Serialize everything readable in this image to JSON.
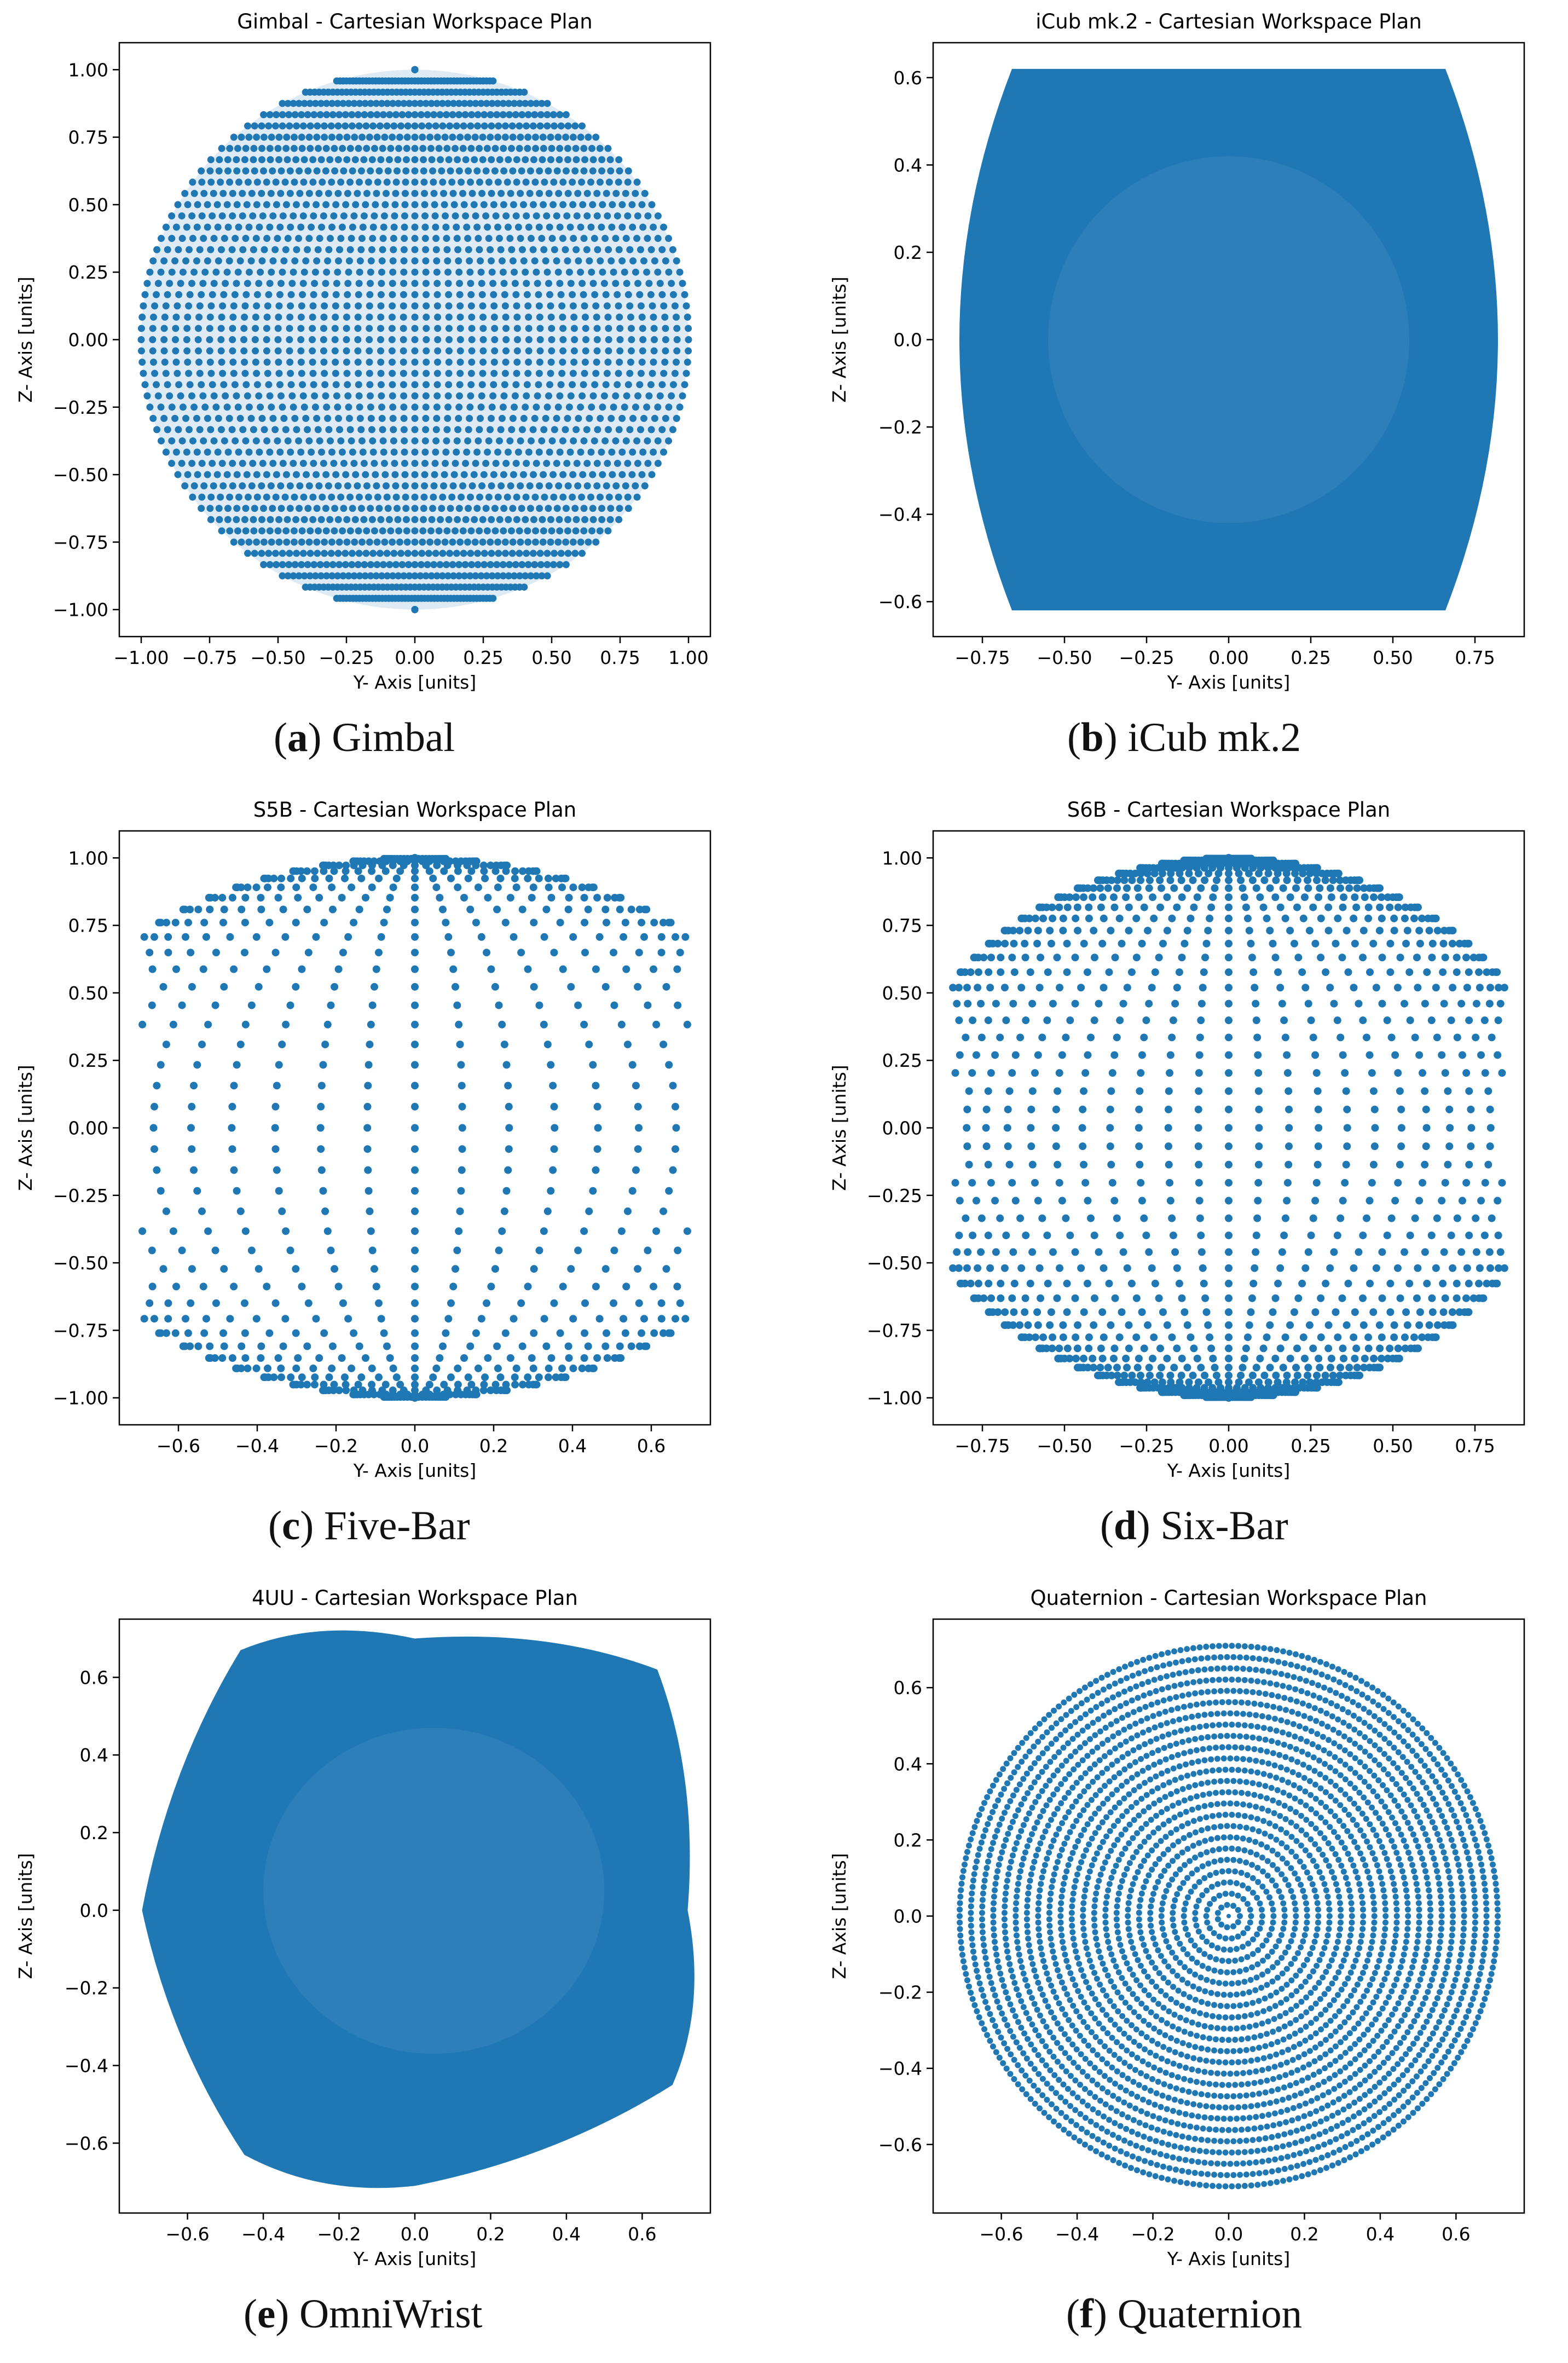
{
  "figure": {
    "point_color": "#1f77b4",
    "captions": [
      {
        "letter": "a",
        "text": "Gimbal",
        "open": "(",
        "close": ")"
      },
      {
        "letter": "b",
        "text": "iCub mk.2",
        "open": "(",
        "close": ")"
      },
      {
        "letter": "c",
        "text": "Five-Bar",
        "open": "(",
        "close": ")"
      },
      {
        "letter": "d",
        "text": "Six-Bar",
        "open": "(",
        "close": ")"
      },
      {
        "letter": "e",
        "text": "OmniWrist",
        "open": "(",
        "close": ")"
      },
      {
        "letter": "f",
        "text": "Quaternion",
        "open": "(",
        "close": ")"
      }
    ]
  },
  "chart_data": [
    {
      "id": "gimbal",
      "type": "scatter",
      "title": "Gimbal - Cartesian Workspace Plan",
      "xlabel": "Y- Axis [units]",
      "ylabel": "Z- Axis [units]",
      "xlim": [
        -1.08,
        1.08
      ],
      "ylim": [
        -1.1,
        1.1
      ],
      "xticks": [
        -1.0,
        -0.75,
        -0.5,
        -0.25,
        0.0,
        0.25,
        0.5,
        0.75,
        1.0
      ],
      "xtick_labels": [
        "−1.00",
        "−0.75",
        "−0.50",
        "−0.25",
        "0.00",
        "0.25",
        "0.50",
        "0.75",
        "1.00"
      ],
      "yticks": [
        -1.0,
        -0.75,
        -0.5,
        -0.25,
        0.0,
        0.25,
        0.5,
        0.75,
        1.0
      ],
      "ytick_labels": [
        "−1.00",
        "−0.75",
        "−0.50",
        "−0.25",
        "0.00",
        "0.25",
        "0.50",
        "0.75",
        "1.00"
      ],
      "grid": false,
      "series": [
        {
          "name": "workspace",
          "shape": "unit disk",
          "points": "disk of radius 1.0 sampled on a dense latitude/longitude grid"
        }
      ]
    },
    {
      "id": "icub",
      "type": "scatter",
      "title": "iCub mk.2 - Cartesian Workspace Plan",
      "xlabel": "Y- Axis [units]",
      "ylabel": "Z- Axis [units]",
      "xlim": [
        -0.9,
        0.9
      ],
      "ylim": [
        -0.68,
        0.68
      ],
      "xticks": [
        -0.75,
        -0.5,
        -0.25,
        0.0,
        0.25,
        0.5,
        0.75
      ],
      "xtick_labels": [
        "−0.75",
        "−0.50",
        "−0.25",
        "0.00",
        "0.25",
        "0.50",
        "0.75"
      ],
      "yticks": [
        -0.6,
        -0.4,
        -0.2,
        0.0,
        0.2,
        0.4,
        0.6
      ],
      "ytick_labels": [
        "−0.6",
        "−0.4",
        "−0.2",
        "0.0",
        "0.2",
        "0.4",
        "0.6"
      ],
      "grid": false,
      "series": [
        {
          "name": "workspace",
          "shape": "barrel",
          "z_range": [
            -0.62,
            0.62
          ],
          "y_half_width_edge": 0.66,
          "y_half_width_mid": 0.82
        }
      ]
    },
    {
      "id": "s5b",
      "type": "scatter",
      "title": "S5B - Cartesian Workspace Plan",
      "xlabel": "Y- Axis [units]",
      "ylabel": "Z- Axis [units]",
      "xlim": [
        -0.75,
        0.75
      ],
      "ylim": [
        -1.1,
        1.1
      ],
      "xticks": [
        -0.6,
        -0.4,
        -0.2,
        0.0,
        0.2,
        0.4,
        0.6
      ],
      "xtick_labels": [
        "−0.6",
        "−0.4",
        "−0.2",
        "0.0",
        "0.2",
        "0.4",
        "0.6"
      ],
      "yticks": [
        -1.0,
        -0.75,
        -0.5,
        -0.25,
        0.0,
        0.25,
        0.5,
        0.75,
        1.0
      ],
      "ytick_labels": [
        "−1.00",
        "−0.75",
        "−0.50",
        "−0.25",
        "0.00",
        "0.25",
        "0.50",
        "0.75",
        "1.00"
      ],
      "grid": false,
      "series": [
        {
          "name": "workspace",
          "shape": "sphere cut at |y| <= 0.70",
          "y_range": [
            -0.7,
            0.7
          ],
          "z_range": [
            -1.0,
            1.0
          ]
        }
      ]
    },
    {
      "id": "s6b",
      "type": "scatter",
      "title": "S6B - Cartesian Workspace Plan",
      "xlabel": "Y- Axis [units]",
      "ylabel": "Z- Axis [units]",
      "xlim": [
        -0.9,
        0.9
      ],
      "ylim": [
        -1.1,
        1.1
      ],
      "xticks": [
        -0.75,
        -0.5,
        -0.25,
        0.0,
        0.25,
        0.5,
        0.75
      ],
      "xtick_labels": [
        "−0.75",
        "−0.50",
        "−0.25",
        "0.00",
        "0.25",
        "0.50",
        "0.75"
      ],
      "yticks": [
        -1.0,
        -0.75,
        -0.5,
        -0.25,
        0.0,
        0.25,
        0.5,
        0.75,
        1.0
      ],
      "ytick_labels": [
        "−1.00",
        "−0.75",
        "−0.50",
        "−0.25",
        "0.00",
        "0.25",
        "0.50",
        "0.75",
        "1.00"
      ],
      "grid": false,
      "series": [
        {
          "name": "workspace",
          "shape": "sphere cut at |y| <= 0.84",
          "y_range": [
            -0.84,
            0.84
          ],
          "z_range": [
            -1.0,
            1.0
          ]
        }
      ]
    },
    {
      "id": "4uu",
      "type": "scatter",
      "title": "4UU - Cartesian Workspace Plan",
      "xlabel": "Y- Axis [units]",
      "ylabel": "Z- Axis [units]",
      "xlim": [
        -0.78,
        0.78
      ],
      "ylim": [
        -0.78,
        0.75
      ],
      "xticks": [
        -0.6,
        -0.4,
        -0.2,
        0.0,
        0.2,
        0.4,
        0.6
      ],
      "xtick_labels": [
        "−0.6",
        "−0.4",
        "−0.2",
        "0.0",
        "0.2",
        "0.4",
        "0.6"
      ],
      "yticks": [
        -0.6,
        -0.4,
        -0.2,
        0.0,
        0.2,
        0.4,
        0.6
      ],
      "ytick_labels": [
        "−0.6",
        "−0.4",
        "−0.2",
        "0.0",
        "0.2",
        "0.4",
        "0.6"
      ],
      "grid": false,
      "series": [
        {
          "name": "workspace",
          "shape": "skewed rounded square",
          "outline": [
            [
              -0.46,
              0.67
            ],
            [
              0.0,
              0.7
            ],
            [
              0.64,
              0.62
            ],
            [
              0.72,
              0.0
            ],
            [
              0.68,
              -0.45
            ],
            [
              0.0,
              -0.71
            ],
            [
              -0.45,
              -0.63
            ],
            [
              -0.72,
              0.0
            ]
          ]
        }
      ]
    },
    {
      "id": "quaternion",
      "type": "scatter",
      "title": "Quaternion - Cartesian Workspace Plan",
      "xlabel": "Y- Axis [units]",
      "ylabel": "Z- Axis [units]",
      "xlim": [
        -0.78,
        0.78
      ],
      "ylim": [
        -0.78,
        0.78
      ],
      "xticks": [
        -0.6,
        -0.4,
        -0.2,
        0.0,
        0.2,
        0.4,
        0.6
      ],
      "xtick_labels": [
        "−0.6",
        "−0.4",
        "−0.2",
        "0.0",
        "0.2",
        "0.4",
        "0.6"
      ],
      "yticks": [
        -0.6,
        -0.4,
        -0.2,
        0.0,
        0.2,
        0.4,
        0.6
      ],
      "ytick_labels": [
        "−0.6",
        "−0.4",
        "−0.2",
        "0.0",
        "0.2",
        "0.4",
        "0.6"
      ],
      "grid": false,
      "series": [
        {
          "name": "workspace",
          "shape": "concentric rings",
          "max_radius": 0.71,
          "ring_count": 24
        }
      ]
    }
  ]
}
